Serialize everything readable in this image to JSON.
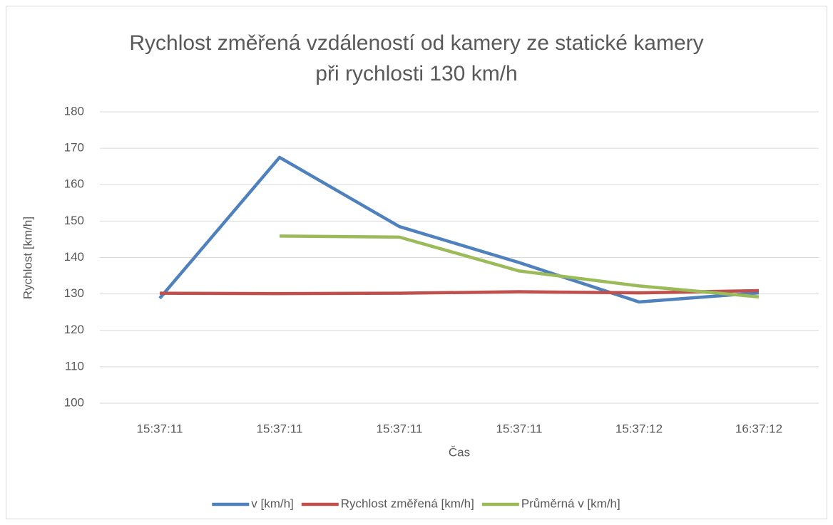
{
  "chart_data": {
    "type": "line",
    "title": [
      "Rychlost změřená vzdáleností od kamery ze statické kamery",
      "při rychlosti 130 km/h"
    ],
    "xlabel": "Čas",
    "ylabel": "Rychlost [km/h]",
    "categories": [
      "15:37:11",
      "15:37:11",
      "15:37:11",
      "15:37:11",
      "15:37:12",
      "16:37:12"
    ],
    "series": [
      {
        "name": "v [km/h]",
        "color": "#4f81bd",
        "values": [
          128.8,
          167.5,
          148.5,
          138.6,
          127.8,
          130.3
        ]
      },
      {
        "name": "Rychlost změřená [km/h]",
        "color": "#c0504d",
        "values": [
          130.2,
          130.1,
          130.2,
          130.6,
          130.3,
          130.9
        ]
      },
      {
        "name": "Průměrná v [km/h]",
        "color": "#9bbb59",
        "values": [
          null,
          145.9,
          145.6,
          136.3,
          132.2,
          129.2
        ]
      }
    ],
    "ylim": [
      100,
      180
    ],
    "yticks": [
      100,
      110,
      120,
      130,
      140,
      150,
      160,
      170,
      180
    ],
    "grid": true,
    "legend": "bottom"
  }
}
